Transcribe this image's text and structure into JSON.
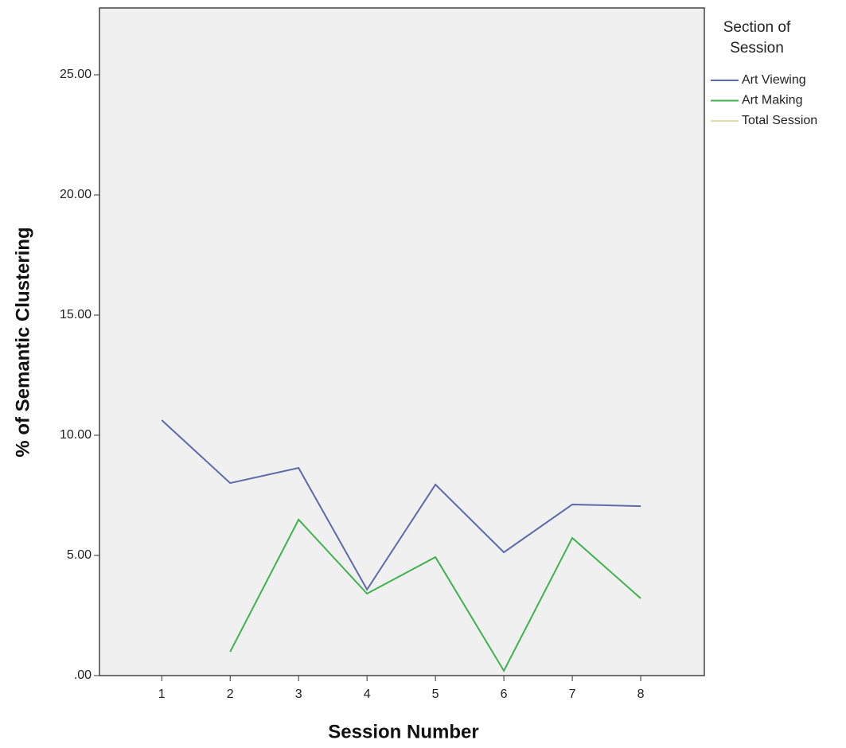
{
  "chart_data": {
    "type": "line",
    "x_label": "Session Number",
    "y_label": "% of Semantic Clustering",
    "legend_title": [
      "Section of",
      "Session"
    ],
    "legend_position": "right",
    "x": [
      1,
      2,
      3,
      4,
      5,
      6,
      7,
      8
    ],
    "series": [
      {
        "name": "Art Viewing",
        "color": "#5a6aab",
        "values": [
          10.63,
          8.01,
          8.64,
          3.58,
          7.95,
          5.13,
          7.12,
          7.05
        ]
      },
      {
        "name": "Art Making",
        "color": "#3fb24d",
        "values": [
          null,
          0.99,
          6.49,
          3.41,
          4.93,
          0.2,
          5.73,
          3.21
        ]
      },
      {
        "name": "Total Session",
        "color": "#efd7ae",
        "values": [
          null,
          null,
          null,
          null,
          null,
          null,
          null,
          null
        ]
      }
    ],
    "xlim": [
      0.09,
      8.93
    ],
    "ylim": [
      0,
      27.78
    ],
    "xticks": [
      1,
      2,
      3,
      4,
      5,
      6,
      7,
      8
    ],
    "yticks": [
      {
        "value": 0,
        "label": ".00"
      },
      {
        "value": 5,
        "label": "5.00"
      },
      {
        "value": 10,
        "label": "10.00"
      },
      {
        "value": 15,
        "label": "15.00"
      },
      {
        "value": 20,
        "label": "20.00"
      },
      {
        "value": 25,
        "label": "25.00"
      }
    ],
    "plot_background": "#f0f0f0"
  }
}
